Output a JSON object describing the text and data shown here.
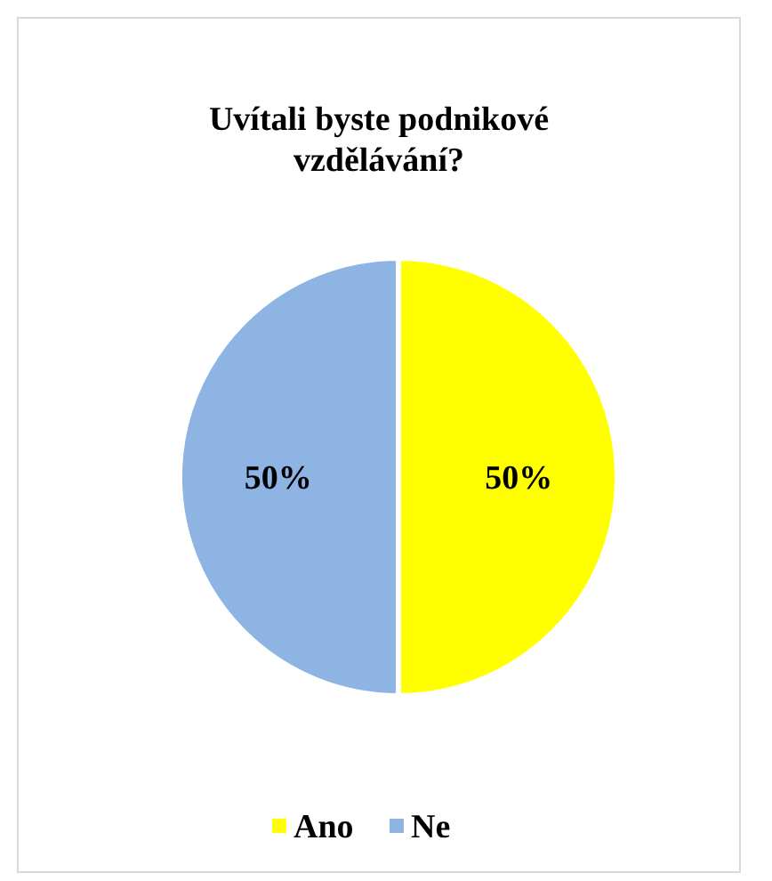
{
  "chart_data": {
    "type": "pie",
    "title": "Uvítali byste podnikové vzdělávání?",
    "categories": [
      "Ano",
      "Ne"
    ],
    "values": [
      50,
      50
    ],
    "colors": [
      "#ffff00",
      "#8eb4e3"
    ],
    "value_labels": [
      "50%",
      "50%"
    ],
    "legend": "bottom"
  }
}
